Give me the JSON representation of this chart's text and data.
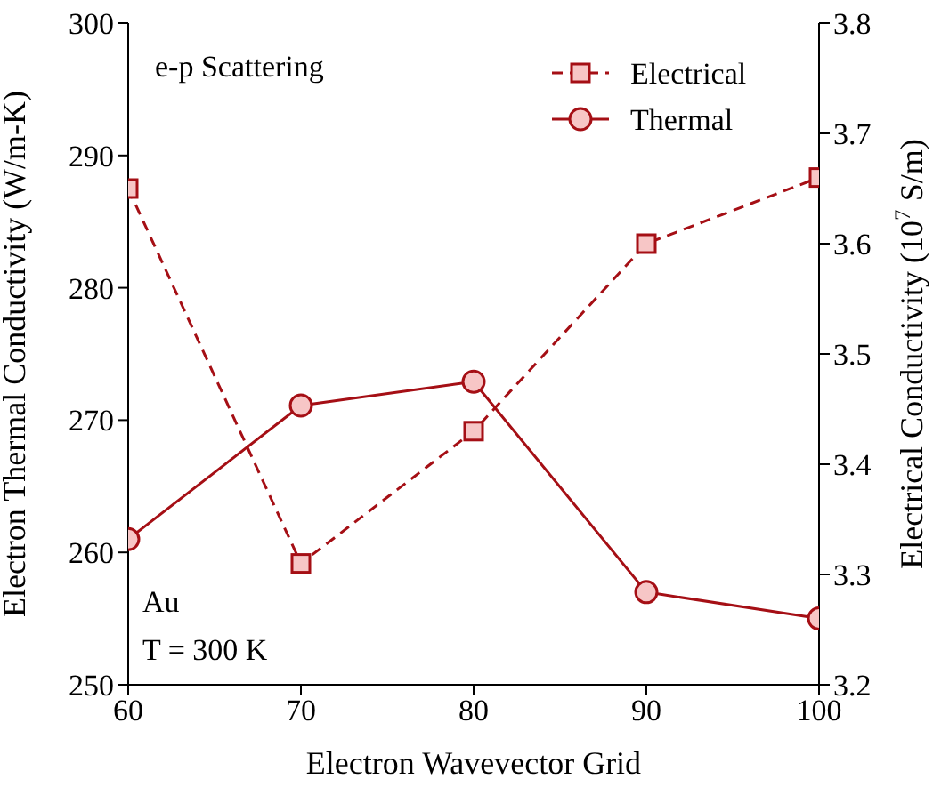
{
  "chart_data": {
    "type": "line",
    "xlabel": "Electron Wavevector Grid",
    "ylabel": "Electron Thermal Conductivity (W/m-K)",
    "y2label": "Electrical Conductivity (10$^{7}$ S/m)",
    "x": [
      60,
      70,
      80,
      90,
      100
    ],
    "series": [
      {
        "name": "Electrical",
        "color": "#a50f15",
        "values": [
          3.65,
          3.31,
          3.43,
          3.6,
          3.66
        ],
        "axis": "y2",
        "marker": "square",
        "line_style": "dashed"
      },
      {
        "name": "Thermal",
        "color": "#a50f15",
        "values": [
          261,
          271.1,
          272.9,
          257,
          255
        ],
        "marker": "circle",
        "line_style": "solid"
      }
    ],
    "xlim": [
      60,
      100
    ],
    "xticks": [
      60,
      70,
      80,
      90,
      100
    ],
    "ylim": [
      250,
      300
    ],
    "yticks": [
      250,
      260,
      270,
      280,
      290,
      300
    ],
    "y2lim": [
      3.2,
      3.8
    ],
    "y2ticks": [
      3.2,
      3.3,
      3.4,
      3.5,
      3.6,
      3.7,
      3.8
    ],
    "legend": "top right",
    "grid": false,
    "annotations": [
      "e-p Scattering",
      "Au",
      "T = 300 K"
    ]
  }
}
